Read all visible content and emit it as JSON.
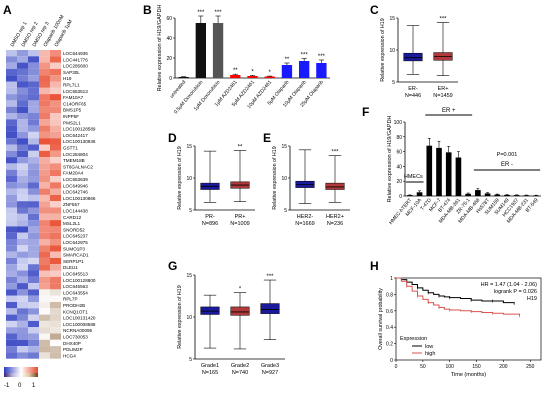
{
  "panel_letters": {
    "A": "A",
    "B": "B",
    "C": "C",
    "D": "D",
    "E": "E",
    "F": "F",
    "G": "G",
    "H": "H"
  },
  "heatmap": {
    "columns": [
      "DMSO rep 1",
      "DMSO rep 2",
      "DMSO rep 3",
      "Olaparib 100nM",
      "Olaparib 1μM"
    ],
    "genes": [
      "LOC644936",
      "LOC441776",
      "LOC285600",
      "SAP30L",
      "H19",
      "RPL7L1",
      "LOC653513",
      "FAM10A7",
      "C14ORF65",
      "BMS1P5",
      "INPP5F",
      "PMS2L1",
      "LOC100128589",
      "LOC642417",
      "LOC100130936",
      "GSTT1",
      "LOC284804",
      "TMEM18B",
      "ST6GALNAC2",
      "FAM20A4",
      "LOC653639",
      "LOC649946",
      "LOC642746",
      "LOC100130866",
      "ZNF557",
      "LOC144438",
      "CARD12",
      "MSL2L1",
      "SNORD52",
      "LOC645237",
      "LOC642975",
      "SUMO1P3",
      "SMARCAD1",
      "SERP1P1",
      "DLEU1",
      "LOC645513",
      "LOC100128800",
      "LOC645563",
      "LOC643554",
      "RPL7P",
      "PRODH2B",
      "KCNQ1OT1",
      "LOC100131420",
      "LOC100008588",
      "NCRNA00095",
      "LOC730053",
      "DHX40P",
      "PDLIM2P",
      "HCG4"
    ],
    "legend_ticks": [
      "-1",
      "0",
      "1"
    ]
  },
  "chart_data": [
    {
      "panel": "B",
      "type": "bar",
      "categories": [
        "untreated",
        "0.5μM Doxorubicin",
        "1μM Doxorubicin",
        "1μM AZD2461",
        "5μM AZD2461",
        "10μM AZD2461",
        "5μM Olaparib",
        "10μM Olaparib",
        "25μM Olaparib"
      ],
      "values": [
        1,
        55,
        55,
        3,
        2,
        1.5,
        13,
        17,
        15
      ],
      "errors": [
        0.3,
        7,
        7,
        0.8,
        0.6,
        0.4,
        2,
        2.5,
        3
      ],
      "significance": [
        "",
        "***",
        "***",
        "**",
        "*",
        "*",
        "**",
        "***",
        "***"
      ],
      "colors": [
        "#111111",
        "#111111",
        "#555555",
        "#ff0000",
        "#ff0000",
        "#ff0000",
        "#1a1aff",
        "#1a1aff",
        "#1a1aff"
      ],
      "ylabel": "Relative expression of H19/GAPDH",
      "ylim": [
        0,
        60
      ],
      "yticks": [
        0,
        20,
        40,
        60
      ]
    },
    {
      "panel": "C",
      "type": "boxplot",
      "ylabel": "Relative expression of H19",
      "ylim": [
        5,
        15
      ],
      "yticks": [
        5,
        10,
        15
      ],
      "groups": [
        {
          "label": "ER-",
          "n": "N=446",
          "min": 6.2,
          "q1": 8.3,
          "median": 8.8,
          "q3": 9.5,
          "max": 13.8,
          "color": "#1a1a9c",
          "sig": ""
        },
        {
          "label": "ER+",
          "n": "N=1459",
          "min": 6,
          "q1": 8.4,
          "median": 9.0,
          "q3": 9.6,
          "max": 14.3,
          "color": "#b0393b",
          "sig": "***"
        }
      ]
    },
    {
      "panel": "D",
      "type": "boxplot",
      "ylabel": "Relative expression of H19",
      "ylim": [
        5,
        15
      ],
      "yticks": [
        5,
        10,
        15
      ],
      "groups": [
        {
          "label": "PR-",
          "n": "N=896",
          "min": 6.2,
          "q1": 8.2,
          "median": 8.7,
          "q3": 9.2,
          "max": 14.2,
          "color": "#1a1a9c",
          "sig": ""
        },
        {
          "label": "PR+",
          "n": "N=1009",
          "min": 6.3,
          "q1": 8.4,
          "median": 8.9,
          "q3": 9.4,
          "max": 14.3,
          "color": "#b0393b",
          "sig": "**"
        }
      ]
    },
    {
      "panel": "E",
      "type": "boxplot",
      "ylabel": "Relative expression of H19",
      "ylim": [
        5,
        15
      ],
      "yticks": [
        5,
        10,
        15
      ],
      "groups": [
        {
          "label": "HER2-",
          "n": "N=1669",
          "min": 6,
          "q1": 8.5,
          "median": 9,
          "q3": 9.5,
          "max": 14.4,
          "color": "#1a1a9c",
          "sig": ""
        },
        {
          "label": "HER2+",
          "n": "N=236",
          "min": 6.2,
          "q1": 8.2,
          "median": 8.6,
          "q3": 9.2,
          "max": 13.5,
          "color": "#b0393b",
          "sig": "***"
        }
      ]
    },
    {
      "panel": "F",
      "type": "bar",
      "categories": [
        "HMEC-hTERT",
        "MCF-10A",
        "T-47D",
        "MCF-7",
        "BT-474",
        "MDA-MB-361",
        "ZR-75-1",
        "MDA-MB-468",
        "Hs578T",
        "SUM159",
        "SUM149",
        "HCC1937",
        "MDA-MB-231",
        "BT-549"
      ],
      "values": [
        1.2,
        5,
        68,
        65,
        59,
        52,
        3,
        8,
        3.5,
        2,
        1.5,
        1.2,
        1,
        0.8
      ],
      "errors": [
        0.3,
        2,
        10,
        9,
        8,
        8,
        1,
        2,
        1.2,
        0.6,
        0.5,
        0.4,
        0.3,
        0.3
      ],
      "ylabel": "Relative expression of H19/GAPDH",
      "ylim": [
        0,
        100
      ],
      "yticks": [
        0,
        20,
        40,
        60,
        80,
        100
      ],
      "annotations": {
        "hmecs": "HMECs",
        "er_pos": "ER +",
        "er_neg": "ER -",
        "pvalue": "P=0.001"
      }
    },
    {
      "panel": "G",
      "type": "boxplot",
      "ylabel": "Relative expression of H19",
      "ylim": [
        5,
        15
      ],
      "yticks": [
        5,
        10,
        15
      ],
      "groups": [
        {
          "label": "Grade1",
          "n": "N=165",
          "min": 6.3,
          "q1": 10.3,
          "median": 10.7,
          "q3": 11.2,
          "max": 12.6,
          "color": "#1a1a9c",
          "sig": ""
        },
        {
          "label": "Grade2",
          "n": "N=740",
          "min": 6.2,
          "q1": 10.2,
          "median": 10.6,
          "q3": 11.2,
          "max": 12.9,
          "color": "#b0393b",
          "sig": "*"
        },
        {
          "label": "Grade3",
          "n": "N=927",
          "min": 7.3,
          "q1": 10.4,
          "median": 10.9,
          "q3": 11.6,
          "max": 14.4,
          "color": "#1a1a9c",
          "sig": "***"
        }
      ]
    },
    {
      "panel": "H",
      "type": "line",
      "xlabel": "Time (months)",
      "ylabel": "Overall survival probability",
      "xlim": [
        0,
        270
      ],
      "ylim": [
        0,
        1
      ],
      "xticks": [
        0,
        50,
        100,
        150,
        200,
        250
      ],
      "yticks": [
        0,
        0.2,
        0.4,
        0.6,
        0.8,
        1
      ],
      "annotation_lines": [
        "HR = 1.47 (1.04 - 2.06)",
        "logrank P = 0.026",
        "H19"
      ],
      "legend_title": "Expression",
      "series": [
        {
          "name": "low",
          "color": "#000000",
          "points": [
            [
              0,
              1
            ],
            [
              10,
              0.98
            ],
            [
              20,
              0.95
            ],
            [
              30,
              0.92
            ],
            [
              40,
              0.88
            ],
            [
              50,
              0.85
            ],
            [
              60,
              0.82
            ],
            [
              70,
              0.8
            ],
            [
              80,
              0.78
            ],
            [
              90,
              0.77
            ],
            [
              100,
              0.76
            ],
            [
              120,
              0.75
            ],
            [
              140,
              0.73
            ],
            [
              160,
              0.72
            ],
            [
              180,
              0.72
            ],
            [
              200,
              0.7
            ],
            [
              220,
              0.69
            ]
          ]
        },
        {
          "name": "high",
          "color": "#d9534f",
          "points": [
            [
              0,
              1
            ],
            [
              10,
              0.96
            ],
            [
              20,
              0.9
            ],
            [
              30,
              0.84
            ],
            [
              40,
              0.78
            ],
            [
              50,
              0.74
            ],
            [
              60,
              0.7
            ],
            [
              70,
              0.67
            ],
            [
              80,
              0.64
            ],
            [
              90,
              0.62
            ],
            [
              100,
              0.61
            ],
            [
              120,
              0.6
            ],
            [
              140,
              0.59
            ],
            [
              160,
              0.58
            ],
            [
              180,
              0.57
            ],
            [
              200,
              0.56
            ],
            [
              230,
              0.54
            ]
          ]
        }
      ]
    }
  ]
}
